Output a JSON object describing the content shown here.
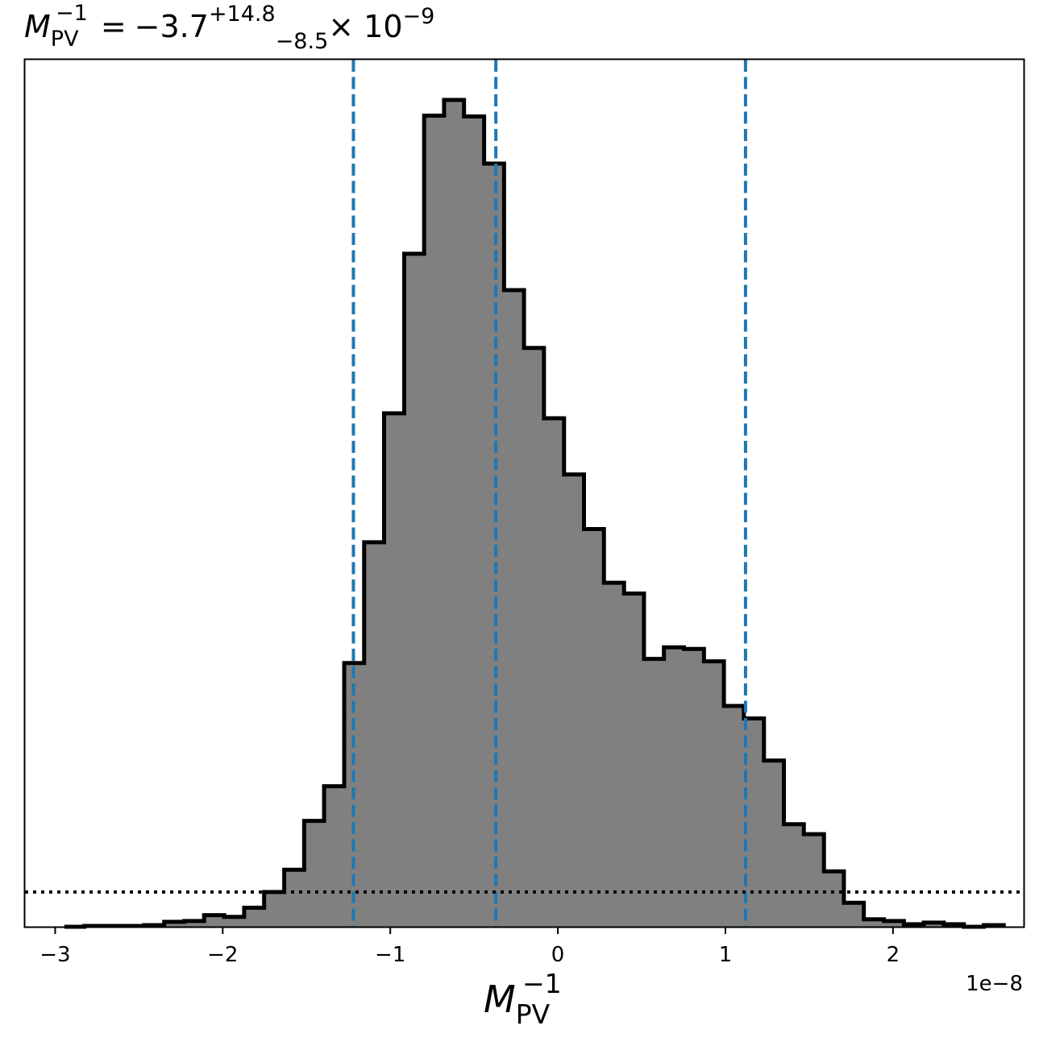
{
  "chart_data": {
    "type": "histogram",
    "title": {
      "symbol": "M",
      "subscript": "PV",
      "superscript": "−1",
      "equals": "=",
      "value": "−3.7",
      "upper_err": "+14.8",
      "lower_err": "−8.5",
      "multiplier": "× 10",
      "exponent": "−9"
    },
    "xlabel": {
      "symbol": "M",
      "subscript": "PV",
      "superscript": "−1"
    },
    "x_offset_label": "1e−8",
    "x_scale_factor": 1e-08,
    "xlim": [
      -3.18,
      2.78
    ],
    "ylim": [
      0,
      1.0
    ],
    "x_ticks": [
      {
        "value": -3,
        "label": "−3"
      },
      {
        "value": -2,
        "label": "−2"
      },
      {
        "value": -1,
        "label": "−1"
      },
      {
        "value": 0,
        "label": "0"
      },
      {
        "value": 1,
        "label": "1"
      },
      {
        "value": 2,
        "label": "2"
      }
    ],
    "y_ticks_shown": false,
    "bin_edges": [
      -2.945,
      -2.826,
      -2.707,
      -2.588,
      -2.468,
      -2.349,
      -2.23,
      -2.111,
      -1.991,
      -1.872,
      -1.753,
      -1.633,
      -1.514,
      -1.395,
      -1.275,
      -1.156,
      -1.037,
      -0.917,
      -0.798,
      -0.679,
      -0.56,
      -0.44,
      -0.321,
      -0.202,
      -0.083,
      0.037,
      0.156,
      0.275,
      0.395,
      0.514,
      0.633,
      0.752,
      0.872,
      0.991,
      1.11,
      1.23,
      1.349,
      1.468,
      1.588,
      1.707,
      1.826,
      1.946,
      2.065,
      2.184,
      2.303,
      2.423,
      2.542,
      2.661
    ],
    "counts": [
      0.0,
      0.001,
      0.001,
      0.001,
      0.002,
      0.006,
      0.007,
      0.014,
      0.012,
      0.023,
      0.042,
      0.069,
      0.128,
      0.17,
      0.319,
      0.465,
      0.621,
      0.814,
      0.981,
      1.0,
      0.98,
      0.923,
      0.77,
      0.7,
      0.615,
      0.547,
      0.481,
      0.416,
      0.403,
      0.324,
      0.338,
      0.336,
      0.321,
      0.267,
      0.252,
      0.201,
      0.124,
      0.112,
      0.067,
      0.029,
      0.009,
      0.007,
      0.003,
      0.005,
      0.003,
      0.0,
      0.002
    ],
    "fill_color": "#808080",
    "edge_color": "#000000",
    "vertical_lines": [
      {
        "x": -1.22,
        "style": "dashed",
        "color": "#1f77b4"
      },
      {
        "x": -0.37,
        "style": "dashed",
        "color": "#1f77b4"
      },
      {
        "x": 1.12,
        "style": "dashed",
        "color": "#1f77b4"
      }
    ],
    "horizontal_line": {
      "y": 0.042,
      "style": "dotted",
      "color": "#000000"
    }
  }
}
